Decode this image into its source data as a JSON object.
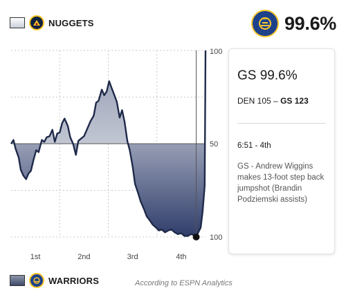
{
  "header": {
    "top_team": "NUGGETS",
    "bottom_team": "WARRIORS",
    "win_probability": "99.6%"
  },
  "source_note": "According to ESPN Analytics",
  "panel": {
    "probability": "GS 99.6%",
    "score_den": "DEN 105",
    "score_sep": "–",
    "score_gs": "GS 123",
    "time": "6:51 - 4th",
    "play": "GS - Andrew Wiggins makes 13-foot step back jumpshot (Brandin Podziemski assists)"
  },
  "colors": {
    "nuggets_fill": "#c5cad6",
    "warriors_fill": "#2f3d6a",
    "line": "#1f2a4a"
  },
  "chart_data": {
    "type": "area",
    "title": "",
    "xlabel": "",
    "ylabel": "",
    "x_ticks": [
      "1st",
      "2nd",
      "3rd",
      "4th"
    ],
    "y_ticks": [
      "100",
      "50",
      "100"
    ],
    "x_range": [
      0,
      48
    ],
    "ylim": [
      -100,
      100
    ],
    "y_meaning": "positive = Nuggets win %, negative = Warriors win %",
    "grid": true,
    "marker_x": 45.7,
    "series": [
      {
        "name": "",
        "x": [
          0,
          0.6,
          1.1,
          1.9,
          2.4,
          3.0,
          3.7,
          4.3,
          4.9,
          5.5,
          6.2,
          6.8,
          7.6,
          8.2,
          8.8,
          9.5,
          10.2,
          10.8,
          11.4,
          12.0,
          12.6,
          13.2,
          14.0,
          14.6,
          15.3,
          16.0,
          16.6,
          17.4,
          18.0,
          18.8,
          19.6,
          20.4,
          21.0,
          21.6,
          22.4,
          23.0,
          23.6,
          24.2,
          24.8,
          25.5,
          26.1,
          26.8,
          27.4,
          28.0,
          28.7,
          29.3,
          30.0,
          30.6,
          31.3,
          32.0,
          32.8,
          33.5,
          34.2,
          35.0,
          35.8,
          36.5,
          37.2,
          38.0,
          38.8,
          39.6,
          40.4,
          41.2,
          42.0,
          42.8,
          43.6,
          44.4,
          45.2,
          45.7,
          46.2,
          46.8,
          47.3,
          47.8,
          48.0
        ],
        "values": [
          0,
          4,
          -5,
          -15,
          -28,
          -34,
          -38,
          -32,
          -29,
          -18,
          -7,
          -9,
          4,
          2,
          7,
          8,
          15,
          2,
          11,
          12,
          22,
          27,
          19,
          7,
          0,
          -12,
          3,
          6,
          8,
          16,
          24,
          30,
          44,
          46,
          58,
          52,
          56,
          67,
          60,
          52,
          45,
          28,
          36,
          24,
          3,
          -7,
          -24,
          -43,
          -52,
          -62,
          -70,
          -78,
          -82,
          -87,
          -90,
          -93,
          -92,
          -95,
          -93,
          -92,
          -95,
          -97,
          -96,
          -99,
          -99,
          -97,
          -98,
          -100,
          -95,
          -90,
          -72,
          -45,
          100
        ]
      }
    ]
  }
}
